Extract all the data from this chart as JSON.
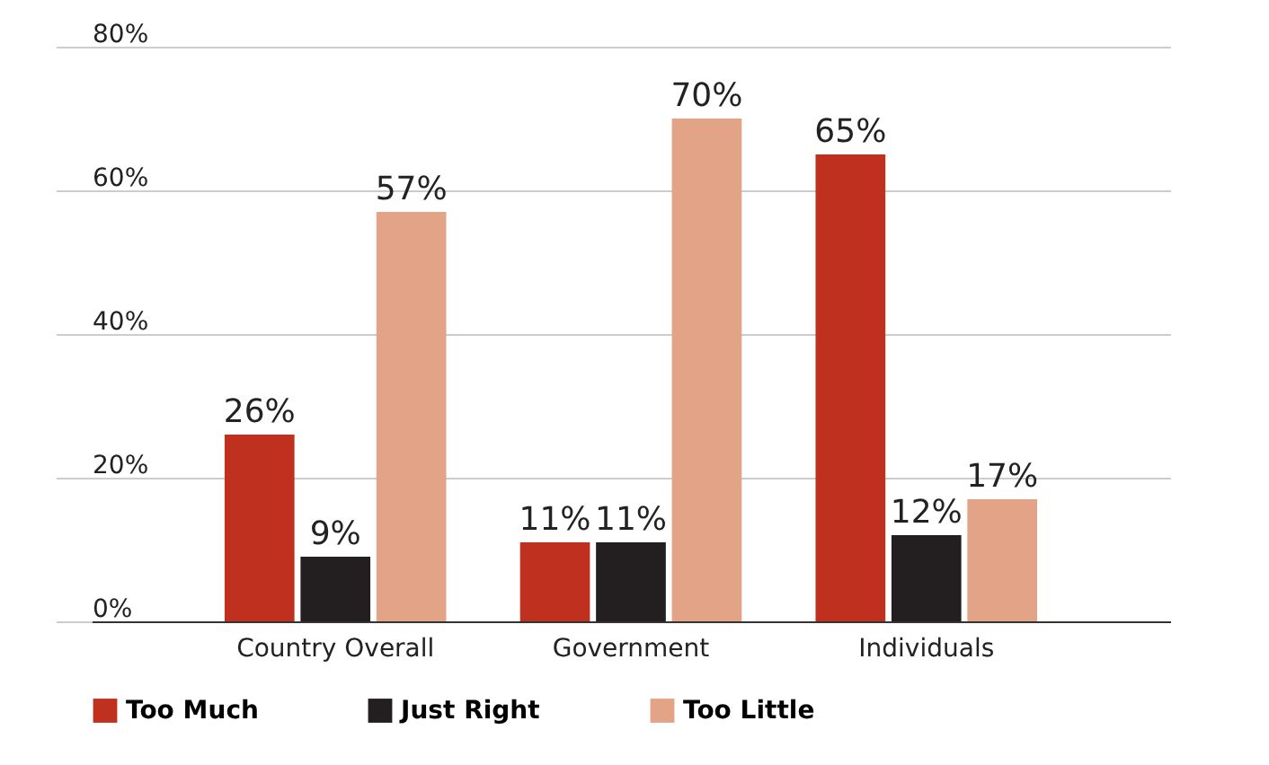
{
  "chart_data": {
    "type": "bar",
    "categories": [
      "Country Overall",
      "Government",
      "Individuals"
    ],
    "series": [
      {
        "name": "Too Much",
        "color": "#c0301e",
        "values": [
          26,
          11,
          65
        ],
        "value_labels": [
          "26%",
          "11%",
          "65%"
        ]
      },
      {
        "name": "Just Right",
        "color": "#231f20",
        "values": [
          9,
          11,
          12
        ],
        "value_labels": [
          "9%",
          "11%",
          "12%"
        ]
      },
      {
        "name": "Too Little",
        "color": "#e3a386",
        "values": [
          57,
          70,
          17
        ],
        "value_labels": [
          "57%",
          "70%",
          "17%"
        ]
      }
    ],
    "ylim": [
      0,
      80
    ],
    "yticks": [
      {
        "value": 0,
        "label": "0%"
      },
      {
        "value": 20,
        "label": "20%"
      },
      {
        "value": 40,
        "label": "40%"
      },
      {
        "value": 60,
        "label": "60%"
      },
      {
        "value": 80,
        "label": "80%"
      }
    ],
    "grid": "y",
    "legend": "bottom"
  }
}
